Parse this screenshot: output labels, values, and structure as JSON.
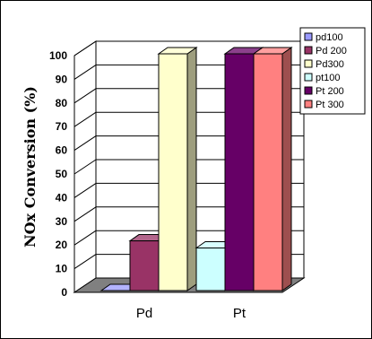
{
  "chart_data": {
    "type": "bar",
    "title": "",
    "xlabel": "",
    "ylabel": "NOx  Conversion (%)",
    "ylim": [
      0,
      100
    ],
    "yticks": [
      0,
      10,
      20,
      30,
      40,
      50,
      60,
      70,
      80,
      90,
      100
    ],
    "grid": true,
    "legend": "right",
    "categories": [
      "Pd",
      "Pt"
    ],
    "series": [
      {
        "name": "pd100",
        "category": "Pd",
        "value": 0,
        "color": "#9999ff"
      },
      {
        "name": "Pd 200",
        "category": "Pd",
        "value": 21,
        "color": "#993366"
      },
      {
        "name": "Pd300",
        "category": "Pd",
        "value": 100,
        "color": "#ffffcc"
      },
      {
        "name": "pt100",
        "category": "Pt",
        "value": 18,
        "color": "#ccffff"
      },
      {
        "name": "Pt 200",
        "category": "Pt",
        "value": 100,
        "color": "#660066"
      },
      {
        "name": "Pt 300",
        "category": "Pt",
        "value": 100,
        "color": "#ff8080"
      }
    ]
  }
}
